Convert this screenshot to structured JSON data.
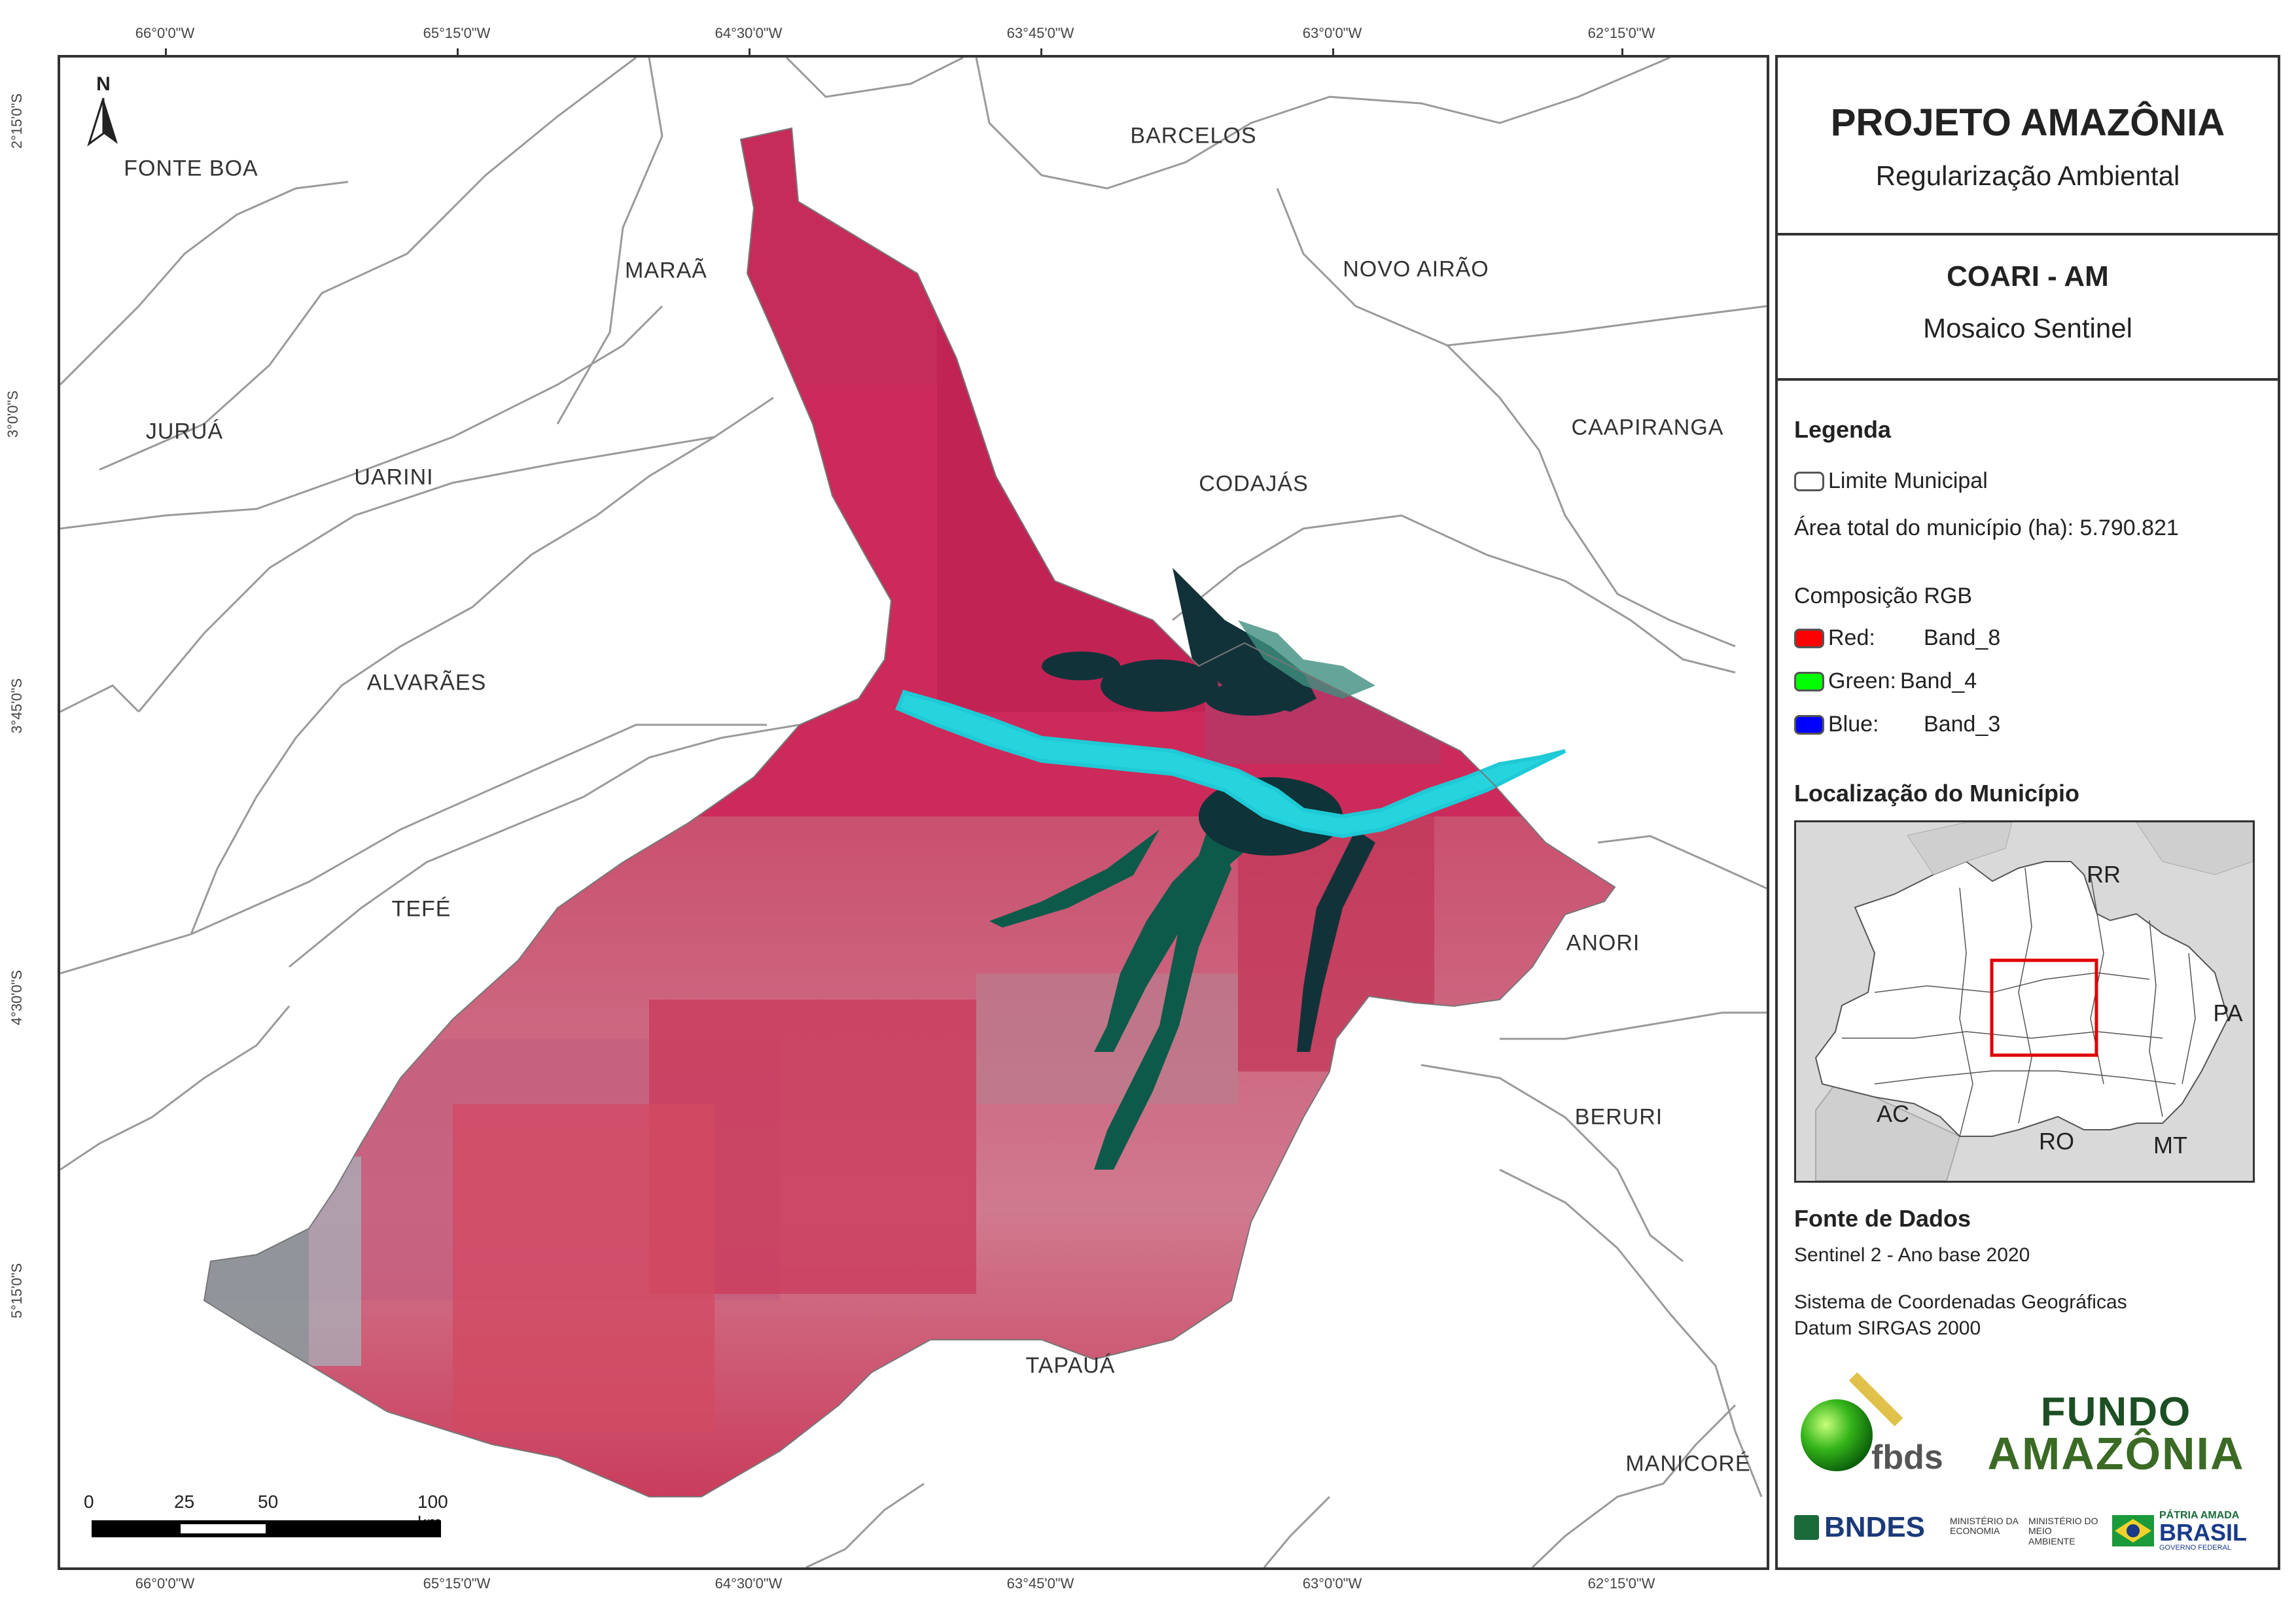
{
  "header": {
    "title": "PROJETO AMAZÔNIA",
    "subtitle": "Regularização Ambiental"
  },
  "map_info": {
    "title": "COARI - AM",
    "subtitle": "Mosaico Sentinel"
  },
  "legend": {
    "heading": "Legenda",
    "boundary_label": "Limite Municipal",
    "area_text": "Área total do município (ha): 5.790.821",
    "rgb_heading": "Composição RGB",
    "bands": [
      {
        "label": "Red:",
        "band": "Band_8",
        "color": "#ff0000"
      },
      {
        "label": "Green:",
        "band": "Band_4",
        "color": "#00ff00"
      },
      {
        "label": "Blue:",
        "band": "Band_3",
        "color": "#0000ff"
      }
    ]
  },
  "location": {
    "heading": "Localização do Município",
    "states": [
      "RR",
      "PA",
      "AC",
      "RO",
      "MT"
    ]
  },
  "sources": {
    "heading": "Fonte de Dados",
    "line1": "Sentinel 2 - Ano base 2020",
    "line2": "Sistema de Coordenadas Geográficas",
    "line3": "Datum SIRGAS 2000"
  },
  "logos": {
    "fbds": "fbds",
    "fundo_line1": "FUNDO",
    "fundo_line2": "AMAZÔNIA",
    "bndes": "BNDES",
    "min_economia": "MINISTÉRIO DA ECONOMIA",
    "min_meio": "MINISTÉRIO DO MEIO AMBIENTE",
    "patria_small": "PÁTRIA AMADA",
    "patria_big": "BRASIL",
    "patria_gov": "GOVERNO FEDERAL"
  },
  "north": "N",
  "scale": {
    "labels": [
      "0",
      "25",
      "50",
      "100 km"
    ]
  },
  "longitudes": [
    "66°0'0\"W",
    "65°15'0\"W",
    "64°30'0\"W",
    "63°45'0\"W",
    "63°0'0\"W",
    "62°15'0\"W"
  ],
  "latitudes": [
    "2°15'0\"S",
    "3°0'0\"S",
    "3°45'0\"S",
    "4°30'0\"S",
    "5°15'0\"S"
  ],
  "municipalities": {
    "fonte_boa": "FONTE BOA",
    "barcelos": "BARCELOS",
    "maraa": "MARAÃ",
    "novo_airao": "NOVO AIRÃO",
    "jurua": "JURUÁ",
    "uarini": "UARINI",
    "codajas": "CODAJÁS",
    "caapiranga": "CAAPIRANGA",
    "alvaraes": "ALVARÃES",
    "tefe": "TEFÉ",
    "anori": "ANORI",
    "beruri": "BERURI",
    "tapaua": "TAPAUÁ",
    "manicore": "MANICORÉ"
  },
  "colors": {
    "vegetation": "#d0245a",
    "river": "#22d7e0",
    "dark_water": "#0d3a3a"
  }
}
